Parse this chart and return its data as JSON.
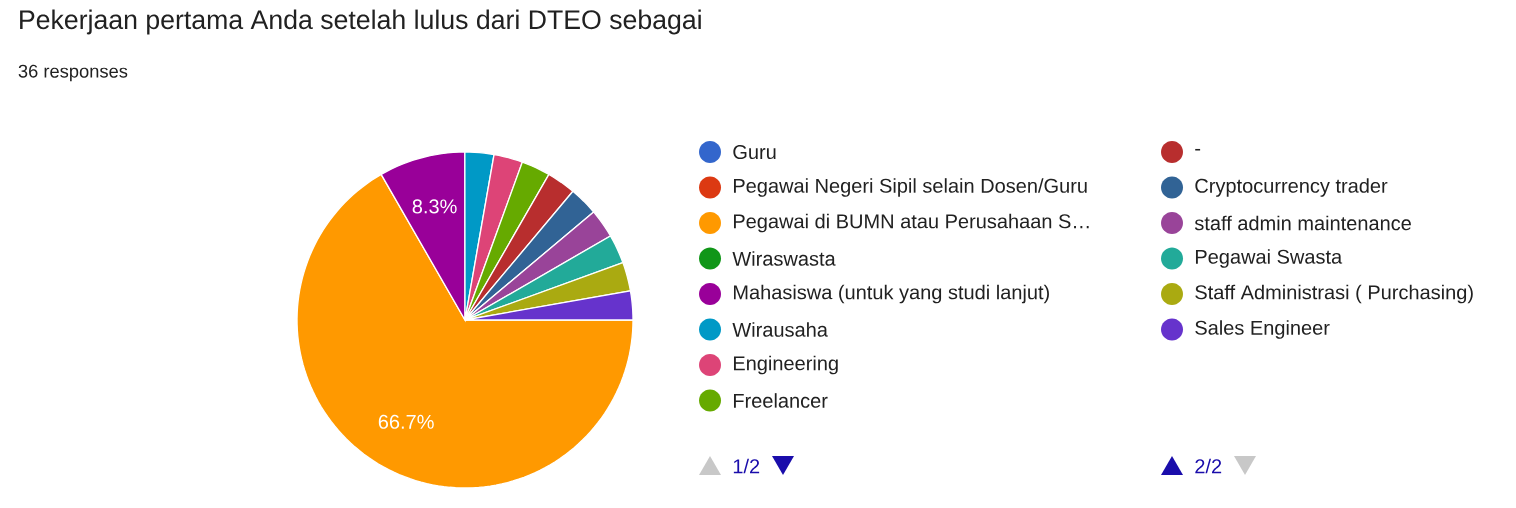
{
  "chart_data": {
    "type": "pie",
    "title": "Pekerjaan pertama Anda setelah lulus dari DTEO sebagai",
    "subtitle": "36 responses",
    "categories": [
      "Guru",
      "Pegawai Negeri Sipil selain Dosen/Guru",
      "Pegawai di BUMN atau Perusahaan S…",
      "Wiraswasta",
      "Mahasiswa (untuk yang studi lanjut)",
      "Wirausaha",
      "Engineering",
      "Freelancer",
      "-",
      "Cryptocurrency trader",
      "staff admin maintenance",
      "Pegawai Swasta",
      "Staff Administrasi ( Purchasing)",
      "Sales Engineer"
    ],
    "values": [
      0,
      0,
      66.7,
      0,
      8.3,
      2.78,
      2.78,
      2.78,
      2.78,
      2.78,
      2.78,
      2.78,
      2.78,
      2.78
    ],
    "colors": [
      "#3366cc",
      "#dc3912",
      "#ff9900",
      "#109618",
      "#990099",
      "#0099c6",
      "#dd4477",
      "#66aa00",
      "#b82e2e",
      "#316395",
      "#994499",
      "#22aa99",
      "#aaaa11",
      "#6633cc"
    ],
    "value_labels": [
      null,
      null,
      "66.7%",
      null,
      "8.3%",
      null,
      null,
      null,
      null,
      null,
      null,
      null,
      null,
      null
    ],
    "legend": "right",
    "annotations": [
      "1/2",
      "2/2"
    ]
  }
}
